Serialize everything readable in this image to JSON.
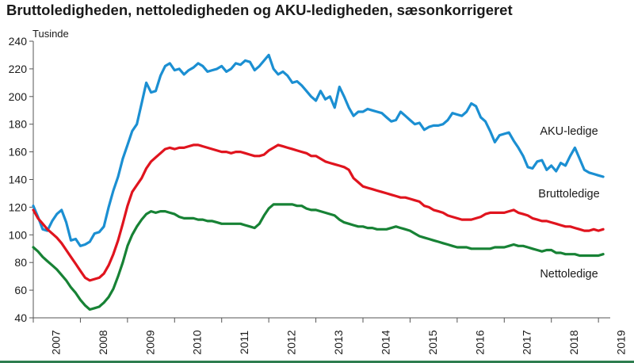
{
  "colors": {
    "aku": "#1b8fd2",
    "brutto": "#e0141e",
    "netto": "#178235",
    "axis": "#555555",
    "text": "#1a1a1a"
  },
  "chart_data": {
    "type": "line",
    "title": "Bruttoledigheden, nettoledigheden og AKU-ledigheden, sæsonkorrigeret",
    "ylabel": "Tusinde",
    "xlabel": "",
    "ylim": [
      40,
      240
    ],
    "yticks": [
      40,
      60,
      80,
      100,
      120,
      140,
      160,
      180,
      200,
      220,
      240
    ],
    "xlim": [
      2007.0,
      2019.25
    ],
    "xtick_labels": [
      "2007",
      "2008",
      "2009",
      "2010",
      "2011",
      "2012",
      "2013",
      "2014",
      "2015",
      "2016",
      "2017",
      "2018",
      "2019"
    ],
    "grid": false,
    "series": [
      {
        "name": "AKU-ledige",
        "color_key": "aku",
        "x": [
          2007.0,
          2007.1,
          2007.2,
          2007.3,
          2007.4,
          2007.5,
          2007.6,
          2007.7,
          2007.8,
          2007.9,
          2008.0,
          2008.1,
          2008.2,
          2008.3,
          2008.4,
          2008.5,
          2008.6,
          2008.7,
          2008.8,
          2008.9,
          2009.0,
          2009.1,
          2009.2,
          2009.3,
          2009.4,
          2009.5,
          2009.6,
          2009.7,
          2009.8,
          2009.9,
          2010.0,
          2010.1,
          2010.2,
          2010.3,
          2010.4,
          2010.5,
          2010.6,
          2010.7,
          2010.8,
          2010.9,
          2011.0,
          2011.1,
          2011.2,
          2011.3,
          2011.4,
          2011.5,
          2011.6,
          2011.7,
          2011.8,
          2011.9,
          2012.0,
          2012.1,
          2012.2,
          2012.3,
          2012.4,
          2012.5,
          2012.6,
          2012.7,
          2012.8,
          2012.9,
          2013.0,
          2013.1,
          2013.2,
          2013.3,
          2013.4,
          2013.5,
          2013.6,
          2013.7,
          2013.8,
          2013.9,
          2014.0,
          2014.1,
          2014.2,
          2014.3,
          2014.4,
          2014.5,
          2014.6,
          2014.7,
          2014.8,
          2014.9,
          2015.0,
          2015.1,
          2015.2,
          2015.3,
          2015.4,
          2015.5,
          2015.6,
          2015.7,
          2015.8,
          2015.9,
          2016.0,
          2016.1,
          2016.2,
          2016.3,
          2016.4,
          2016.5,
          2016.6,
          2016.7,
          2016.8,
          2016.9,
          2017.0,
          2017.1,
          2017.2,
          2017.3,
          2017.4,
          2017.5,
          2017.6,
          2017.7,
          2017.8,
          2017.9,
          2018.0,
          2018.1,
          2018.2,
          2018.3,
          2018.4,
          2018.5,
          2018.6,
          2018.7,
          2018.8,
          2018.9,
          2019.0,
          2019.1
        ],
        "y": [
          121,
          113,
          104,
          103,
          110,
          115,
          118,
          109,
          96,
          97,
          92,
          93,
          95,
          101,
          102,
          106,
          120,
          132,
          142,
          155,
          165,
          175,
          180,
          195,
          210,
          203,
          204,
          215,
          222,
          224,
          219,
          220,
          216,
          219,
          221,
          224,
          222,
          218,
          219,
          220,
          222,
          218,
          220,
          224,
          223,
          226,
          225,
          219,
          222,
          226,
          230,
          220,
          216,
          218,
          215,
          210,
          211,
          208,
          204,
          200,
          197,
          204,
          198,
          200,
          192,
          207,
          200,
          192,
          186,
          189,
          189,
          191,
          190,
          189,
          188,
          185,
          182,
          183,
          189,
          186,
          183,
          180,
          181,
          176,
          178,
          179,
          179,
          180,
          183,
          188,
          187,
          186,
          189,
          195,
          193,
          185,
          182,
          175,
          167,
          172,
          173,
          174,
          168,
          163,
          157,
          149,
          148,
          153,
          154,
          147,
          150,
          146,
          152,
          150,
          157,
          163,
          155,
          147,
          145,
          144,
          143,
          142
        ],
        "label": "AKU-ledige"
      },
      {
        "name": "Bruttoledige",
        "color_key": "brutto",
        "x": [
          2007.0,
          2007.1,
          2007.2,
          2007.3,
          2007.4,
          2007.5,
          2007.6,
          2007.7,
          2007.8,
          2007.9,
          2008.0,
          2008.1,
          2008.2,
          2008.3,
          2008.4,
          2008.5,
          2008.6,
          2008.7,
          2008.8,
          2008.9,
          2009.0,
          2009.1,
          2009.2,
          2009.3,
          2009.4,
          2009.5,
          2009.6,
          2009.7,
          2009.8,
          2009.9,
          2010.0,
          2010.1,
          2010.2,
          2010.3,
          2010.4,
          2010.5,
          2010.6,
          2010.7,
          2010.8,
          2010.9,
          2011.0,
          2011.1,
          2011.2,
          2011.3,
          2011.4,
          2011.5,
          2011.6,
          2011.7,
          2011.8,
          2011.9,
          2012.0,
          2012.1,
          2012.2,
          2012.3,
          2012.4,
          2012.5,
          2012.6,
          2012.7,
          2012.8,
          2012.9,
          2013.0,
          2013.1,
          2013.2,
          2013.3,
          2013.4,
          2013.5,
          2013.6,
          2013.7,
          2013.8,
          2013.9,
          2014.0,
          2014.1,
          2014.2,
          2014.3,
          2014.4,
          2014.5,
          2014.6,
          2014.7,
          2014.8,
          2014.9,
          2015.0,
          2015.1,
          2015.2,
          2015.3,
          2015.4,
          2015.5,
          2015.6,
          2015.7,
          2015.8,
          2015.9,
          2016.0,
          2016.1,
          2016.2,
          2016.3,
          2016.4,
          2016.5,
          2016.6,
          2016.7,
          2016.8,
          2016.9,
          2017.0,
          2017.1,
          2017.2,
          2017.3,
          2017.4,
          2017.5,
          2017.6,
          2017.7,
          2017.8,
          2017.9,
          2018.0,
          2018.1,
          2018.2,
          2018.3,
          2018.4,
          2018.5,
          2018.6,
          2018.7,
          2018.8,
          2018.9,
          2019.0,
          2019.1
        ],
        "y": [
          118,
          112,
          108,
          104,
          101,
          98,
          94,
          89,
          84,
          79,
          74,
          69,
          67,
          68,
          69,
          72,
          78,
          86,
          96,
          108,
          121,
          131,
          136,
          141,
          148,
          153,
          156,
          159,
          162,
          163,
          162,
          163,
          163,
          164,
          165,
          165,
          164,
          163,
          162,
          161,
          160,
          160,
          159,
          160,
          160,
          159,
          158,
          157,
          157,
          158,
          161,
          163,
          165,
          164,
          163,
          162,
          161,
          160,
          159,
          157,
          157,
          155,
          153,
          152,
          151,
          150,
          149,
          147,
          141,
          138,
          135,
          134,
          133,
          132,
          131,
          130,
          129,
          128,
          127,
          127,
          126,
          125,
          124,
          121,
          120,
          118,
          117,
          116,
          114,
          113,
          112,
          111,
          111,
          111,
          112,
          113,
          115,
          116,
          116,
          116,
          116,
          117,
          118,
          116,
          115,
          114,
          112,
          111,
          110,
          110,
          109,
          108,
          107,
          106,
          106,
          105,
          104,
          103,
          103,
          104,
          103,
          104
        ],
        "label": "Bruttoledige"
      },
      {
        "name": "Nettoledige",
        "color_key": "netto",
        "x": [
          2007.0,
          2007.1,
          2007.2,
          2007.3,
          2007.4,
          2007.5,
          2007.6,
          2007.7,
          2007.8,
          2007.9,
          2008.0,
          2008.1,
          2008.2,
          2008.3,
          2008.4,
          2008.5,
          2008.6,
          2008.7,
          2008.8,
          2008.9,
          2009.0,
          2009.1,
          2009.2,
          2009.3,
          2009.4,
          2009.5,
          2009.6,
          2009.7,
          2009.8,
          2009.9,
          2010.0,
          2010.1,
          2010.2,
          2010.3,
          2010.4,
          2010.5,
          2010.6,
          2010.7,
          2010.8,
          2010.9,
          2011.0,
          2011.1,
          2011.2,
          2011.3,
          2011.4,
          2011.5,
          2011.6,
          2011.7,
          2011.8,
          2011.9,
          2012.0,
          2012.1,
          2012.2,
          2012.3,
          2012.4,
          2012.5,
          2012.6,
          2012.7,
          2012.8,
          2012.9,
          2013.0,
          2013.1,
          2013.2,
          2013.3,
          2013.4,
          2013.5,
          2013.6,
          2013.7,
          2013.8,
          2013.9,
          2014.0,
          2014.1,
          2014.2,
          2014.3,
          2014.4,
          2014.5,
          2014.6,
          2014.7,
          2014.8,
          2014.9,
          2015.0,
          2015.1,
          2015.2,
          2015.3,
          2015.4,
          2015.5,
          2015.6,
          2015.7,
          2015.8,
          2015.9,
          2016.0,
          2016.1,
          2016.2,
          2016.3,
          2016.4,
          2016.5,
          2016.6,
          2016.7,
          2016.8,
          2016.9,
          2017.0,
          2017.1,
          2017.2,
          2017.3,
          2017.4,
          2017.5,
          2017.6,
          2017.7,
          2017.8,
          2017.9,
          2018.0,
          2018.1,
          2018.2,
          2018.3,
          2018.4,
          2018.5,
          2018.6,
          2018.7,
          2018.8,
          2018.9,
          2019.0,
          2019.1
        ],
        "y": [
          91,
          88,
          84,
          81,
          78,
          75,
          71,
          67,
          62,
          58,
          53,
          49,
          46,
          47,
          48,
          51,
          55,
          61,
          70,
          80,
          92,
          100,
          106,
          111,
          115,
          117,
          116,
          117,
          117,
          116,
          115,
          113,
          112,
          112,
          112,
          111,
          111,
          110,
          110,
          109,
          108,
          108,
          108,
          108,
          108,
          107,
          106,
          105,
          108,
          114,
          119,
          122,
          122,
          122,
          122,
          122,
          121,
          121,
          119,
          118,
          118,
          117,
          116,
          115,
          114,
          111,
          109,
          108,
          107,
          106,
          106,
          105,
          105,
          104,
          104,
          104,
          105,
          106,
          105,
          104,
          103,
          101,
          99,
          98,
          97,
          96,
          95,
          94,
          93,
          92,
          91,
          91,
          91,
          90,
          90,
          90,
          90,
          90,
          91,
          91,
          91,
          92,
          93,
          92,
          92,
          91,
          90,
          89,
          88,
          89,
          89,
          87,
          87,
          86,
          86,
          86,
          85,
          85,
          85,
          85,
          85,
          86
        ],
        "label": "Nettoledige"
      }
    ]
  }
}
